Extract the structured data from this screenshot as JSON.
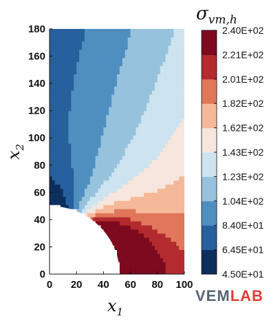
{
  "chart_data": {
    "type": "heatmap",
    "title": "σ_vm,h",
    "title_parts": {
      "sym": "σ",
      "sub": "vm,h"
    },
    "xlabel_parts": {
      "sym": "x",
      "sub": "1"
    },
    "ylabel_parts": {
      "sym": "x",
      "sub": "2"
    },
    "xlim": [
      0,
      100
    ],
    "ylim": [
      0,
      180
    ],
    "x_ticks": [
      "0",
      "20",
      "40",
      "60",
      "80",
      "100"
    ],
    "y_ticks": [
      "0",
      "20",
      "40",
      "60",
      "80",
      "100",
      "120",
      "140",
      "160",
      "180"
    ],
    "hole": {
      "shape": "quarter-ellipse",
      "center": [
        0,
        0
      ],
      "semi_axis_x": 52,
      "semi_axis_y": 50
    },
    "colorbar": {
      "levels": [
        "4.50E+01",
        "6.45E+01",
        "8.40E+01",
        "1.04E+02",
        "1.23E+02",
        "1.43E+02",
        "1.62E+02",
        "1.82E+02",
        "2.01E+02",
        "2.21E+02",
        "2.40E+02"
      ],
      "level_values": [
        45,
        64.5,
        84,
        104,
        123,
        143,
        162,
        182,
        201,
        221,
        240
      ],
      "colors": [
        "#0d2f5e",
        "#27609c",
        "#4f8fc0",
        "#96c2de",
        "#cde3ef",
        "#f7e6dd",
        "#f5b999",
        "#e0765a",
        "#b32b2f",
        "#7d0a1f"
      ]
    },
    "regions_approx": [
      {
        "desc_level_index": 0,
        "value_range": [
          45,
          64.5
        ],
        "center": [
          5,
          95
        ]
      },
      {
        "desc_level_index": 9,
        "value_range": [
          221,
          240
        ],
        "center": [
          75,
          40
        ]
      }
    ]
  },
  "logo": {
    "part1": "VEM",
    "part2": "LAB",
    "color1": "#566573",
    "color2": "#e03d34"
  }
}
